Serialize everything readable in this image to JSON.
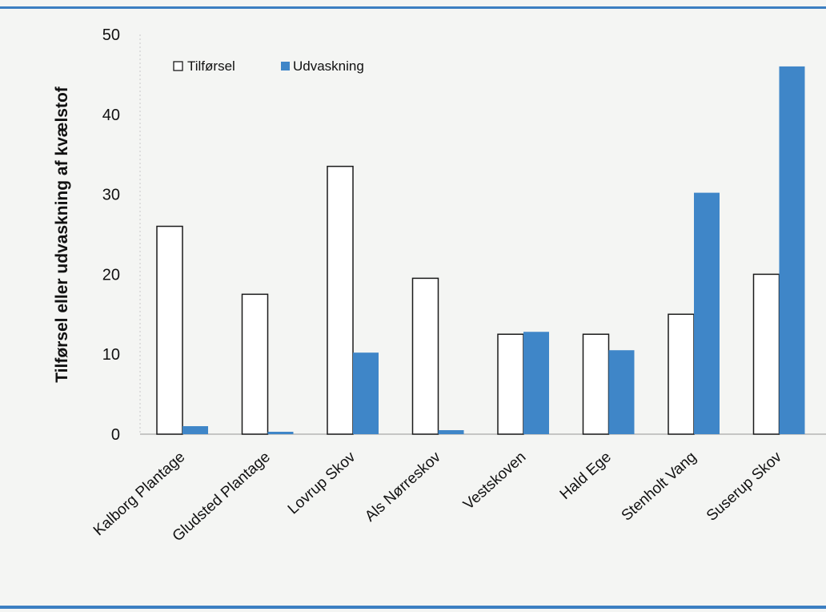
{
  "colors": {
    "accent_line": "#3c7fc2",
    "udvaskning_fill": "#3f86c8",
    "tilforsel_fill": "#ffffff",
    "bar_stroke": "#1a1a1a",
    "text": "#111111"
  },
  "chart_data": {
    "type": "bar",
    "ylabel": "Tilførsel eller udvaskning af kvælstof",
    "xlabel": "",
    "ylim": [
      0,
      50
    ],
    "yticks": [
      "0",
      "10",
      "20",
      "30",
      "40",
      "50"
    ],
    "legend": {
      "placement": "top-left",
      "entries": [
        "Tilførsel",
        "Udvaskning"
      ]
    },
    "categories": [
      "Kalborg Plantage",
      "Gludsted Plantage",
      "Lovrup Skov",
      "Als Nørreskov",
      "Vestskoven",
      "Hald Ege",
      "Stenholt Vang",
      "Suserup Skov"
    ],
    "series": [
      {
        "name": "Tilførsel",
        "values": [
          26,
          17.5,
          33.5,
          19.5,
          12.5,
          12.5,
          15,
          20
        ]
      },
      {
        "name": "Udvaskning",
        "values": [
          1,
          0.3,
          10.2,
          0.5,
          12.8,
          10.5,
          30.2,
          46
        ]
      }
    ]
  }
}
